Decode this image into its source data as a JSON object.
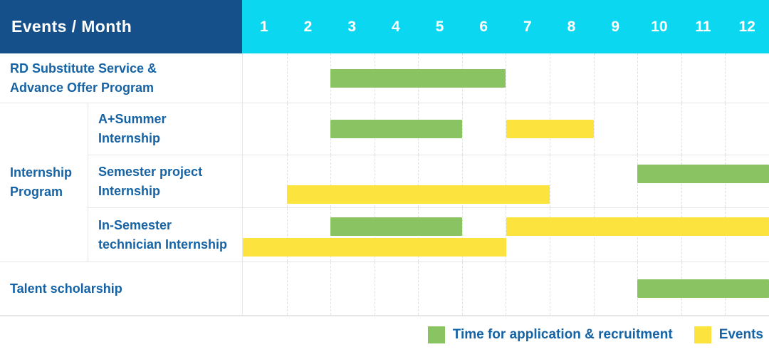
{
  "header": {
    "title": "Events / Month",
    "months": [
      "1",
      "2",
      "3",
      "4",
      "5",
      "6",
      "7",
      "8",
      "9",
      "10",
      "11",
      "12"
    ]
  },
  "group_label": "Internship\nProgram",
  "colors": {
    "header_bg": "#15508a",
    "months_bg": "#0bd8f0",
    "label_text": "#1563a5",
    "green": "#8ac462",
    "yellow": "#fde33e",
    "grid_line": "#e6e6e6",
    "grid_dash": "#e0e0e0"
  },
  "legend": [
    {
      "color_key": "green",
      "label": "Time for application & recruitment"
    },
    {
      "color_key": "yellow",
      "label": "Events"
    }
  ],
  "chart_data": {
    "type": "gantt",
    "title": "Events / Month",
    "x_axis": {
      "label": "Month",
      "ticks": [
        "1",
        "2",
        "3",
        "4",
        "5",
        "6",
        "7",
        "8",
        "9",
        "10",
        "11",
        "12"
      ],
      "range": [
        1,
        12
      ],
      "grid": "dashed-vertical"
    },
    "legend_position": "bottom-right",
    "series": [
      {
        "key": "green",
        "name": "Time for application & recruitment",
        "color": "#8ac462"
      },
      {
        "key": "yellow",
        "name": "Events",
        "color": "#fde33e"
      }
    ],
    "rows": [
      {
        "group": null,
        "label": "RD Substitute Service &\nAdvance Offer Program",
        "lines": [
          [
            {
              "series_key": "green",
              "start_month": 3,
              "end_month": 6
            }
          ]
        ]
      },
      {
        "group": "Internship Program",
        "label": "A+Summer\nInternship",
        "lines": [
          [
            {
              "series_key": "green",
              "start_month": 3,
              "end_month": 5
            },
            {
              "series_key": "yellow",
              "start_month": 7,
              "end_month": 8
            }
          ]
        ]
      },
      {
        "group": "Internship Program",
        "label": "Semester project\nInternship",
        "lines": [
          [
            {
              "series_key": "green",
              "start_month": 10,
              "end_month": 12
            }
          ],
          [
            {
              "series_key": "yellow",
              "start_month": 2,
              "end_month": 7
            }
          ]
        ]
      },
      {
        "group": "Internship Program",
        "label": "In-Semester\ntechnician Internship",
        "lines": [
          [
            {
              "series_key": "green",
              "start_month": 3,
              "end_month": 5
            },
            {
              "series_key": "yellow",
              "start_month": 7,
              "end_month": 12
            }
          ],
          [
            {
              "series_key": "yellow",
              "start_month": 1,
              "end_month": 6
            }
          ]
        ]
      },
      {
        "group": null,
        "label": "Talent scholarship",
        "lines": [
          [
            {
              "series_key": "green",
              "start_month": 10,
              "end_month": 12
            }
          ]
        ]
      }
    ]
  }
}
